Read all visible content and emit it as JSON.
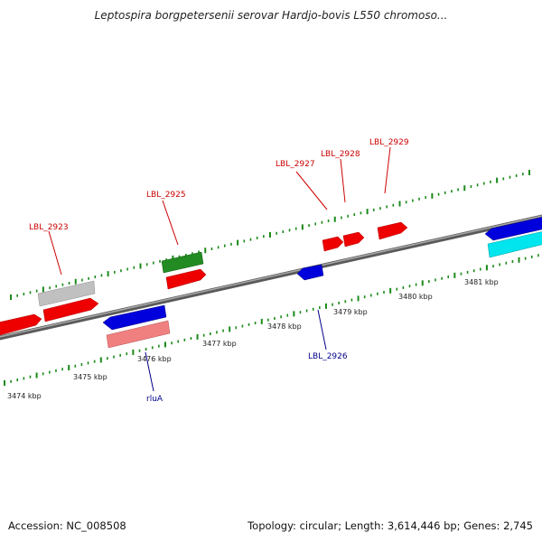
{
  "title": "Leptospira borgpetersenii serovar Hardjo-bovis L550 chromoso...",
  "footer": {
    "accession": "Accession: NC_008508",
    "genome_info": "Topology: circular; Length: 3,614,446 bp; Genes: 2,745"
  },
  "colors": {
    "backbone": "#808080",
    "ticks": "#1a8a1a",
    "forward_label": "#cc0000",
    "reverse_label": "#00008b"
  },
  "scale": {
    "labels": [
      "3474 kbp",
      "3475 kbp",
      "3476 kbp",
      "3477 kbp",
      "3478 kbp",
      "3479 kbp",
      "3480 kbp",
      "3481 kbp"
    ]
  },
  "genes": [
    {
      "label": "LBL_2923",
      "color": "#ee0000",
      "strand": "forward"
    },
    {
      "label": "LBL_2925",
      "color": "#ee0000",
      "strand": "forward"
    },
    {
      "label": "LBL_2927",
      "color": "#ee0000",
      "strand": "forward"
    },
    {
      "label": "LBL_2928",
      "color": "#ee0000",
      "strand": "forward"
    },
    {
      "label": "LBL_2929",
      "color": "#ee0000",
      "strand": "forward"
    },
    {
      "label": "LBL_2926",
      "color": "#0000dd",
      "strand": "reverse"
    },
    {
      "label": "rluA",
      "color": "#0000dd",
      "strand": "reverse"
    }
  ],
  "features": [
    {
      "type": "pseudo/other",
      "color": "#c0c0c0"
    },
    {
      "type": "rRNA/other",
      "color": "#228b22"
    },
    {
      "type": "pseudogene",
      "color": "#f08080"
    },
    {
      "type": "other",
      "color": "#00e5ee"
    }
  ]
}
